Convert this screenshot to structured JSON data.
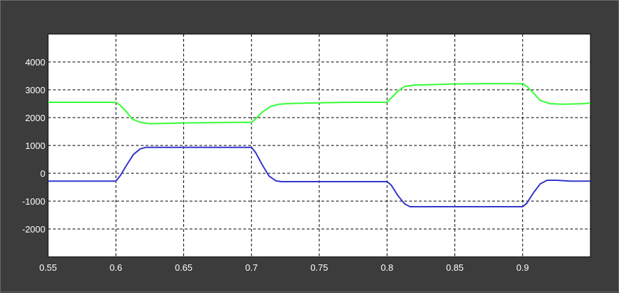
{
  "window": {
    "background_color": "#3c3c3c",
    "plot_background_color": "#ffffff",
    "grid_color": "#000000"
  },
  "chart_data": {
    "type": "line",
    "title": "",
    "xlabel": "",
    "ylabel": "",
    "xlim": [
      0.55,
      0.95
    ],
    "ylim": [
      -3000,
      5000
    ],
    "grid": true,
    "x_ticks": [
      0.55,
      0.6,
      0.65,
      0.7,
      0.75,
      0.8,
      0.85,
      0.9
    ],
    "x_tick_labels": [
      "0.55",
      "0.6",
      "0.65",
      "0.7",
      "0.75",
      "0.8",
      "0.85",
      "0.9"
    ],
    "y_ticks": [
      -2000,
      -1000,
      0,
      1000,
      2000,
      3000,
      4000
    ],
    "y_tick_labels": [
      "-2000",
      "-1000",
      "0",
      "1000",
      "2000",
      "3000",
      "4000"
    ],
    "series": [
      {
        "color": "#33ff33",
        "x": [
          0.55,
          0.6,
          0.603,
          0.608,
          0.612,
          0.618,
          0.625,
          0.635,
          0.65,
          0.67,
          0.69,
          0.7,
          0.703,
          0.708,
          0.714,
          0.72,
          0.73,
          0.75,
          0.77,
          0.79,
          0.8,
          0.803,
          0.808,
          0.813,
          0.82,
          0.83,
          0.85,
          0.87,
          0.89,
          0.9,
          0.903,
          0.908,
          0.913,
          0.92,
          0.93,
          0.945,
          0.95
        ],
        "y": [
          2550,
          2550,
          2450,
          2200,
          1950,
          1830,
          1780,
          1790,
          1810,
          1820,
          1830,
          1830,
          1950,
          2200,
          2400,
          2480,
          2510,
          2530,
          2550,
          2550,
          2550,
          2700,
          2950,
          3120,
          3170,
          3180,
          3210,
          3220,
          3220,
          3220,
          3130,
          2880,
          2620,
          2500,
          2480,
          2500,
          2530
        ]
      },
      {
        "color": "#3333cc",
        "x": [
          0.55,
          0.6,
          0.603,
          0.608,
          0.613,
          0.618,
          0.622,
          0.63,
          0.65,
          0.68,
          0.7,
          0.703,
          0.708,
          0.713,
          0.718,
          0.722,
          0.73,
          0.75,
          0.78,
          0.8,
          0.803,
          0.808,
          0.813,
          0.817,
          0.825,
          0.85,
          0.88,
          0.9,
          0.903,
          0.908,
          0.913,
          0.918,
          0.925,
          0.935,
          0.95
        ],
        "y": [
          -280,
          -280,
          -100,
          300,
          680,
          880,
          930,
          930,
          930,
          930,
          930,
          750,
          300,
          -100,
          -270,
          -300,
          -300,
          -300,
          -300,
          -300,
          -420,
          -800,
          -1100,
          -1200,
          -1200,
          -1200,
          -1200,
          -1200,
          -1080,
          -700,
          -380,
          -250,
          -250,
          -280,
          -280
        ]
      }
    ]
  }
}
